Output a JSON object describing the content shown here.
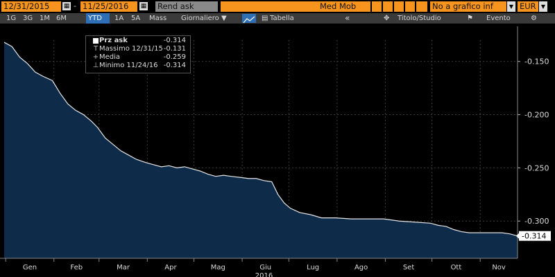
{
  "toolbar": {
    "start_date": "12/31/2015",
    "end_date": "11/25/2016",
    "separator": "-",
    "field": "Rend ask",
    "med_mob": "Med Mob",
    "compare": "No a grafico inf",
    "currency": "EUR"
  },
  "periods": [
    "1G",
    "3G",
    "1M",
    "6M",
    "YTD",
    "1A",
    "5A",
    "Mass"
  ],
  "selected_period": "YTD",
  "frequency": "Giornaliero ▼",
  "tabella": "Tabella",
  "back": "«",
  "titolo_studio": "Titolo/Studio",
  "evento": "Evento",
  "settings_glyph": "⚙",
  "legend": [
    {
      "icon": "■",
      "label": "Prz ask",
      "value": "-0.314"
    },
    {
      "icon": "T",
      "label": "Massimo 12/31/15",
      "value": "-0.131"
    },
    {
      "icon": "+",
      "label": "Media",
      "value": "-0.259"
    },
    {
      "icon": "⊥",
      "label": "Minimo 11/24/16",
      "value": "-0.314"
    }
  ],
  "colors": {
    "area": "#0e2b4a",
    "line": "#e8e8e8",
    "toolbar_orange": "#f7941d",
    "selected_blue": "#2f6fb5",
    "label_box": "#ffffff"
  },
  "chart_data": {
    "type": "area",
    "xlabel": "2016",
    "ylim": [
      -0.335,
      -0.13
    ],
    "y_ticks": [
      "-0.150",
      "-0.200",
      "-0.250",
      "-0.300"
    ],
    "y_tick_values": [
      -0.15,
      -0.2,
      -0.25,
      -0.3
    ],
    "x_ticks": [
      "Gen",
      "Feb",
      "Mar",
      "Apr",
      "Mag",
      "Giu",
      "Lug",
      "Ago",
      "Set",
      "Ott",
      "Nov"
    ],
    "x_range": [
      "2015-12-31",
      "2016-11-25"
    ],
    "last_value_label": "-0.314",
    "series": [
      {
        "name": "Prz ask",
        "points": [
          [
            "2015-12-31",
            -0.132
          ],
          [
            "2016-01-05",
            -0.136
          ],
          [
            "2016-01-10",
            -0.146
          ],
          [
            "2016-01-15",
            -0.152
          ],
          [
            "2016-01-20",
            -0.16
          ],
          [
            "2016-01-25",
            -0.164
          ],
          [
            "2016-01-31",
            -0.168
          ],
          [
            "2016-02-05",
            -0.18
          ],
          [
            "2016-02-10",
            -0.19
          ],
          [
            "2016-02-15",
            -0.196
          ],
          [
            "2016-02-20",
            -0.2
          ],
          [
            "2016-02-25",
            -0.206
          ],
          [
            "2016-02-29",
            -0.212
          ],
          [
            "2016-03-05",
            -0.222
          ],
          [
            "2016-03-10",
            -0.228
          ],
          [
            "2016-03-15",
            -0.234
          ],
          [
            "2016-03-20",
            -0.238
          ],
          [
            "2016-03-25",
            -0.242
          ],
          [
            "2016-03-31",
            -0.245
          ],
          [
            "2016-04-05",
            -0.247
          ],
          [
            "2016-04-10",
            -0.249
          ],
          [
            "2016-04-15",
            -0.248
          ],
          [
            "2016-04-20",
            -0.25
          ],
          [
            "2016-04-25",
            -0.249
          ],
          [
            "2016-04-30",
            -0.251
          ],
          [
            "2016-05-05",
            -0.253
          ],
          [
            "2016-05-10",
            -0.256
          ],
          [
            "2016-05-15",
            -0.258
          ],
          [
            "2016-05-20",
            -0.257
          ],
          [
            "2016-05-25",
            -0.258
          ],
          [
            "2016-05-31",
            -0.259
          ],
          [
            "2016-06-05",
            -0.26
          ],
          [
            "2016-06-10",
            -0.26
          ],
          [
            "2016-06-15",
            -0.262
          ],
          [
            "2016-06-20",
            -0.263
          ],
          [
            "2016-06-24",
            -0.275
          ],
          [
            "2016-06-28",
            -0.283
          ],
          [
            "2016-07-02",
            -0.288
          ],
          [
            "2016-07-08",
            -0.292
          ],
          [
            "2016-07-15",
            -0.294
          ],
          [
            "2016-07-22",
            -0.297
          ],
          [
            "2016-07-31",
            -0.297
          ],
          [
            "2016-08-10",
            -0.298
          ],
          [
            "2016-08-20",
            -0.298
          ],
          [
            "2016-08-31",
            -0.298
          ],
          [
            "2016-09-10",
            -0.3
          ],
          [
            "2016-09-20",
            -0.301
          ],
          [
            "2016-09-30",
            -0.302
          ],
          [
            "2016-10-05",
            -0.304
          ],
          [
            "2016-10-10",
            -0.305
          ],
          [
            "2016-10-15",
            -0.308
          ],
          [
            "2016-10-20",
            -0.31
          ],
          [
            "2016-10-25",
            -0.311
          ],
          [
            "2016-10-31",
            -0.311
          ],
          [
            "2016-11-05",
            -0.311
          ],
          [
            "2016-11-10",
            -0.311
          ],
          [
            "2016-11-15",
            -0.311
          ],
          [
            "2016-11-20",
            -0.312
          ],
          [
            "2016-11-25",
            -0.314
          ]
        ]
      }
    ]
  }
}
